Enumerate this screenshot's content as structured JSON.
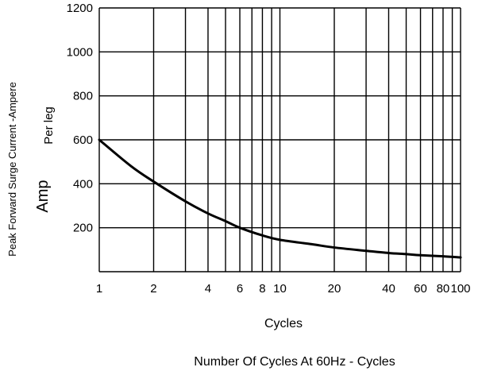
{
  "chart_data": {
    "type": "line",
    "x_scale": "log",
    "x_ticks": [
      1,
      2,
      4,
      6,
      8,
      10,
      20,
      40,
      60,
      80,
      100
    ],
    "x_tick_labels": [
      "1",
      "2",
      "4",
      "6",
      "8",
      "10",
      "20",
      "40",
      "60",
      "80",
      "100"
    ],
    "y_ticks": [
      200,
      400,
      600,
      800,
      1000,
      1200
    ],
    "y_tick_labels": [
      "200",
      "400",
      "600",
      "800",
      "1000",
      "1200"
    ],
    "xlim": [
      1,
      100
    ],
    "ylim": [
      0,
      1200
    ],
    "grid": true,
    "xlabel": "Cycles",
    "ylabel_lines": [
      "Peak Forward Surge Current -Ampere",
      "Per leg",
      "Amp"
    ],
    "caption": "Number Of Cycles At 60Hz - Cycles",
    "series": [
      {
        "x": [
          1,
          1.5,
          2,
          3,
          4,
          5,
          6,
          8,
          10,
          15,
          20,
          30,
          40,
          50,
          60,
          80,
          100
        ],
        "values": [
          600,
          480,
          410,
          320,
          265,
          230,
          200,
          165,
          145,
          125,
          110,
          95,
          85,
          80,
          75,
          70,
          65
        ]
      }
    ]
  },
  "colors": {
    "line": "#000000",
    "grid": "#000000",
    "background": "#ffffff"
  }
}
